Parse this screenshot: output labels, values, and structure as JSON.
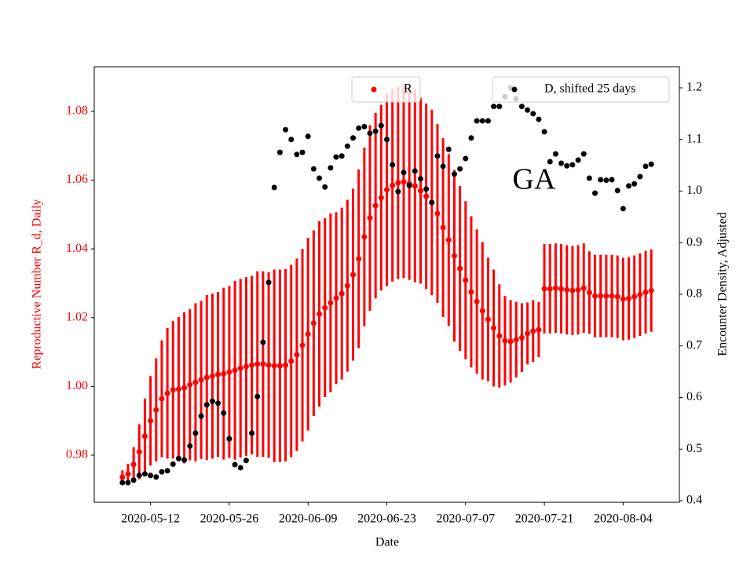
{
  "chart_data": {
    "type": "scatter",
    "annotation": "GA",
    "xlabel": "Date",
    "ylabel": "Reproductive Number R_d, Daily",
    "y2label": "Encounter Density, Adjusted",
    "x": [
      "2020-05-07",
      "2020-05-08",
      "2020-05-09",
      "2020-05-10",
      "2020-05-11",
      "2020-05-12",
      "2020-05-13",
      "2020-05-14",
      "2020-05-15",
      "2020-05-16",
      "2020-05-17",
      "2020-05-18",
      "2020-05-19",
      "2020-05-20",
      "2020-05-21",
      "2020-05-22",
      "2020-05-23",
      "2020-05-24",
      "2020-05-25",
      "2020-05-26",
      "2020-05-27",
      "2020-05-28",
      "2020-05-29",
      "2020-05-30",
      "2020-05-31",
      "2020-06-01",
      "2020-06-02",
      "2020-06-03",
      "2020-06-04",
      "2020-06-05",
      "2020-06-06",
      "2020-06-07",
      "2020-06-08",
      "2020-06-09",
      "2020-06-10",
      "2020-06-11",
      "2020-06-12",
      "2020-06-13",
      "2020-06-14",
      "2020-06-15",
      "2020-06-16",
      "2020-06-17",
      "2020-06-18",
      "2020-06-19",
      "2020-06-20",
      "2020-06-21",
      "2020-06-22",
      "2020-06-23",
      "2020-06-24",
      "2020-06-25",
      "2020-06-26",
      "2020-06-27",
      "2020-06-28",
      "2020-06-29",
      "2020-06-30",
      "2020-07-01",
      "2020-07-02",
      "2020-07-03",
      "2020-07-04",
      "2020-07-05",
      "2020-07-06",
      "2020-07-07",
      "2020-07-08",
      "2020-07-09",
      "2020-07-10",
      "2020-07-11",
      "2020-07-12",
      "2020-07-13",
      "2020-07-14",
      "2020-07-15",
      "2020-07-16",
      "2020-07-17",
      "2020-07-18",
      "2020-07-19",
      "2020-07-20",
      "2020-07-21",
      "2020-07-22",
      "2020-07-23",
      "2020-07-24",
      "2020-07-25",
      "2020-07-26",
      "2020-07-27",
      "2020-07-28",
      "2020-07-29",
      "2020-07-30",
      "2020-07-31",
      "2020-08-01",
      "2020-08-02",
      "2020-08-03",
      "2020-08-04",
      "2020-08-05",
      "2020-08-06",
      "2020-08-07",
      "2020-08-08",
      "2020-08-09"
    ],
    "series": [
      {
        "name": "R",
        "color": "#ff0000",
        "values": [
          0.9736,
          0.9745,
          0.9773,
          0.981,
          0.9855,
          0.99,
          0.9932,
          0.9964,
          0.998,
          0.999,
          0.9992,
          0.9996,
          1.0005,
          1.0012,
          1.0019,
          1.0026,
          1.003,
          1.0035,
          1.0037,
          1.0042,
          1.0047,
          1.0053,
          1.0058,
          1.0062,
          1.0065,
          1.0065,
          1.0062,
          1.006,
          1.006,
          1.0062,
          1.0074,
          1.0092,
          1.012,
          1.0152,
          1.0184,
          1.0211,
          1.0229,
          1.0243,
          1.0257,
          1.027,
          1.0293,
          1.0325,
          1.0371,
          1.0435,
          1.049,
          1.0526,
          1.0549,
          1.0572,
          1.0585,
          1.0592,
          1.0595,
          1.059,
          1.0583,
          1.0569,
          1.0553,
          1.0535,
          1.0503,
          1.0462,
          1.0426,
          1.038,
          1.0343,
          1.0309,
          1.0275,
          1.0247,
          1.022,
          1.0195,
          1.017,
          1.0147,
          1.0133,
          1.0131,
          1.0136,
          1.0142,
          1.0154,
          1.0161,
          1.0165,
          1.0284,
          1.0284,
          1.0286,
          1.0284,
          1.0281,
          1.0279,
          1.0281,
          1.0286,
          1.0273,
          1.0263,
          1.0263,
          1.0263,
          1.0263,
          1.0261,
          1.0254,
          1.0256,
          1.0261,
          1.0267,
          1.0274,
          1.0279
        ],
        "errors": [
          0.002,
          0.003,
          0.005,
          0.008,
          0.011,
          0.013,
          0.015,
          0.017,
          0.019,
          0.02,
          0.021,
          0.022,
          0.022,
          0.023,
          0.023,
          0.024,
          0.024,
          0.024,
          0.025,
          0.025,
          0.026,
          0.026,
          0.026,
          0.026,
          0.027,
          0.027,
          0.027,
          0.028,
          0.028,
          0.028,
          0.028,
          0.028,
          0.028,
          0.028,
          0.027,
          0.027,
          0.026,
          0.026,
          0.025,
          0.025,
          0.025,
          0.025,
          0.026,
          0.026,
          0.027,
          0.027,
          0.027,
          0.028,
          0.028,
          0.028,
          0.028,
          0.028,
          0.028,
          0.027,
          0.027,
          0.027,
          0.026,
          0.026,
          0.025,
          0.025,
          0.024,
          0.023,
          0.022,
          0.021,
          0.02,
          0.018,
          0.017,
          0.015,
          0.013,
          0.012,
          0.011,
          0.01,
          0.009,
          0.009,
          0.008,
          0.013,
          0.013,
          0.013,
          0.013,
          0.013,
          0.013,
          0.013,
          0.013,
          0.012,
          0.012,
          0.012,
          0.012,
          0.012,
          0.012,
          0.012,
          0.012,
          0.012,
          0.012,
          0.012,
          0.012
        ]
      },
      {
        "name": "D, shifted 25 days",
        "color": "#000000",
        "axis": "y2",
        "values": [
          0.435,
          0.435,
          0.44,
          0.449,
          0.452,
          0.449,
          0.446,
          0.456,
          0.458,
          0.471,
          0.482,
          0.479,
          0.506,
          0.531,
          0.564,
          0.586,
          0.593,
          0.589,
          0.57,
          0.52,
          0.47,
          0.464,
          0.478,
          0.531,
          0.602,
          0.707,
          0.823,
          1.007,
          1.075,
          1.119,
          1.1,
          1.071,
          1.075,
          1.106,
          1.043,
          1.025,
          1.008,
          1.045,
          1.066,
          1.068,
          1.087,
          1.103,
          1.122,
          1.125,
          1.112,
          1.116,
          1.127,
          1.1,
          1.051,
          0.999,
          1.036,
          1.011,
          1.039,
          1.024,
          1.004,
          0.978,
          1.068,
          1.048,
          1.081,
          1.033,
          1.043,
          1.063,
          1.103,
          1.136,
          1.136,
          1.136,
          1.164,
          1.164,
          1.183,
          1.2,
          1.179,
          1.164,
          1.157,
          1.15,
          1.139,
          1.115,
          1.057,
          1.072,
          1.054,
          1.049,
          1.051,
          1.06,
          1.072,
          1.025,
          0.996,
          1.022,
          1.021,
          1.022,
          1.001,
          0.966,
          1.01,
          1.014,
          1.028,
          1.048,
          1.052
        ]
      }
    ],
    "xlim": [
      "2020-05-02",
      "2020-08-14"
    ],
    "xticks": [
      "2020-05-12",
      "2020-05-26",
      "2020-06-09",
      "2020-06-23",
      "2020-07-07",
      "2020-07-21",
      "2020-08-04"
    ],
    "ylim": [
      0.9663,
      1.093
    ],
    "yticks": [
      0.98,
      {
        "value": 1,
        "label": "1.00"
      },
      1.02,
      1.04,
      1.06,
      1.08
    ],
    "y2lim": [
      0.397,
      1.241
    ],
    "y2ticks": [
      0.4,
      0.5,
      0.6,
      0.7,
      0.8,
      0.9,
      {
        "value": 1,
        "label": "1.0"
      },
      1.1,
      1.2
    ]
  }
}
